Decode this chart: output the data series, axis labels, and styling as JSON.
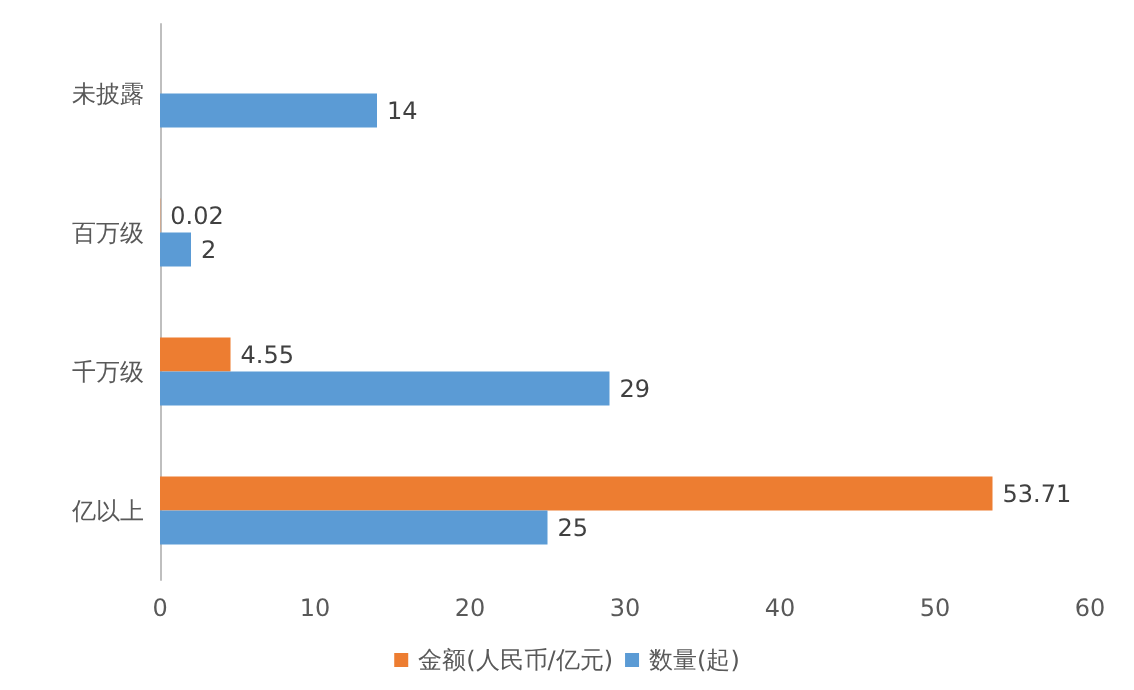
{
  "chart_data": {
    "type": "bar",
    "orientation": "horizontal",
    "categories": [
      "未披露",
      "百万级",
      "千万级",
      "亿以上"
    ],
    "series": [
      {
        "name": "金额(人民币/亿元)",
        "color": "#ed7d31",
        "values": [
          null,
          0.02,
          4.55,
          53.71
        ]
      },
      {
        "name": "数量(起)",
        "color": "#5b9bd5",
        "values": [
          14,
          2,
          29,
          25
        ]
      }
    ],
    "xlim": [
      0,
      60
    ],
    "xticks": [
      0,
      10,
      20,
      30,
      40,
      50,
      60
    ],
    "data_labels": true,
    "legend": "bottom",
    "grid": false
  }
}
